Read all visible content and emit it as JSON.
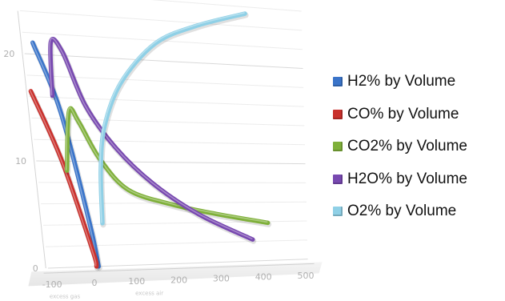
{
  "chart_data": {
    "type": "line",
    "view": "3d-perspective",
    "title": "",
    "x_ticks": [
      "-100",
      "0",
      "100",
      "200",
      "300",
      "400",
      "500"
    ],
    "y_ticks": [
      "0",
      "10",
      "20"
    ],
    "x_axis_captions": [
      "excess gas",
      "excess air"
    ],
    "xlim": [
      -120,
      520
    ],
    "ylim": [
      0,
      22
    ],
    "grid": true,
    "legend_position": "right",
    "series": [
      {
        "name": "H2% by Volume",
        "color": "#3a74c9",
        "x": [
          -88,
          -40,
          0,
          10
        ],
        "y": [
          21,
          14.5,
          4,
          0
        ]
      },
      {
        "name": "CO% by Volume",
        "color": "#c9302c",
        "x": [
          -105,
          -50,
          0,
          5
        ],
        "y": [
          16.5,
          10,
          1.5,
          0
        ]
      },
      {
        "name": "CO2% by Volume",
        "color": "#7fb03a",
        "x": [
          -40,
          -20,
          0,
          40,
          100,
          200,
          300,
          420
        ],
        "y": [
          9,
          14.5,
          13.5,
          10,
          7,
          5.5,
          4.5,
          3.5
        ]
      },
      {
        "name": "H2O% by Volume",
        "color": "#7849b0",
        "x": [
          -55,
          -45,
          -20,
          20,
          80,
          160,
          260,
          380
        ],
        "y": [
          16,
          21,
          20,
          15,
          11,
          7.5,
          4.5,
          2
        ]
      },
      {
        "name": "O2% by Volume",
        "color": "#8fd0e6",
        "x": [
          30,
          40,
          60,
          110,
          200,
          300,
          420
        ],
        "y": [
          4,
          9,
          13,
          17,
          20.5,
          22,
          23
        ]
      }
    ]
  }
}
